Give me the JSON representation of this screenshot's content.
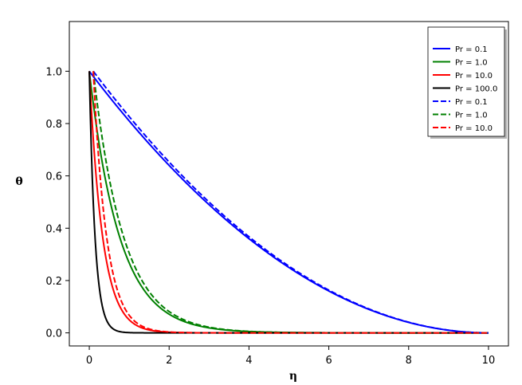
{
  "chart_data": {
    "type": "line",
    "title": "",
    "xlabel": "η",
    "ylabel": "θ",
    "xlim": [
      -0.5,
      10.5
    ],
    "ylim": [
      -0.05,
      1.19
    ],
    "xticks": [
      0,
      2,
      4,
      6,
      8,
      10
    ],
    "yticks": [
      0.0,
      0.2,
      0.4,
      0.6,
      0.8,
      1.0
    ],
    "xtick_labels": [
      "0",
      "2",
      "4",
      "6",
      "8",
      "10"
    ],
    "ytick_labels": [
      "0.0",
      "0.2",
      "0.4",
      "0.6",
      "0.8",
      "1.0"
    ],
    "grid": false,
    "legend_position": "top-right",
    "series": [
      {
        "name": "Pr = 0.1",
        "color": "#0000ff",
        "dash": "solid",
        "x_start": 0.0,
        "curve": "linear_decay",
        "k": 0.47
      },
      {
        "name": "Pr = 1.0",
        "color": "#008000",
        "dash": "solid",
        "x_start": 0.0,
        "curve": "exp_decay",
        "k": 1.32
      },
      {
        "name": "Pr = 10.0",
        "color": "#ff0000",
        "dash": "solid",
        "x_start": 0.0,
        "curve": "exp_decay",
        "k": 3.0
      },
      {
        "name": "Pr = 100.0",
        "color": "#000000",
        "dash": "solid",
        "x_start": 0.0,
        "curve": "exp_decay",
        "k": 7.0
      },
      {
        "name": "Pr = 0.1",
        "color": "#0000ff",
        "dash": "dashed",
        "x_start": 0.1,
        "curve": "linear_decay",
        "k": 0.47
      },
      {
        "name": "Pr = 1.0",
        "color": "#008000",
        "dash": "dashed",
        "x_start": 0.1,
        "curve": "exp_decay",
        "k": 1.32
      },
      {
        "name": "Pr = 10.0",
        "color": "#ff0000",
        "dash": "dashed",
        "x_start": 0.1,
        "curve": "exp_decay",
        "k": 3.0
      }
    ]
  }
}
